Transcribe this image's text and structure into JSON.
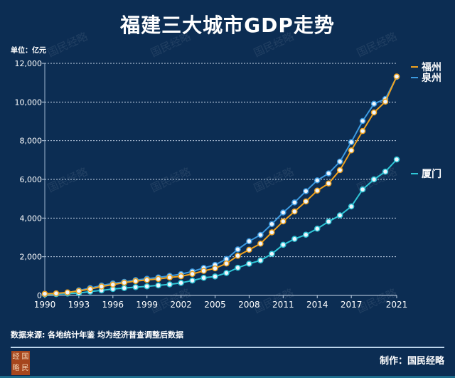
{
  "title": "福建三大城市GDP走势",
  "unit_label": "单位：亿元",
  "source": "数据来源: 各地统计年鉴  均为经济普查调整后数据",
  "credit": "制作：国民经略",
  "logo_text": [
    "经",
    "国",
    "略",
    "民"
  ],
  "watermark": "国民经略",
  "chart_data": {
    "type": "line",
    "title": "福建三大城市GDP走势",
    "ylabel": "单位：亿元",
    "ylim": [
      0,
      12000
    ],
    "yticks": [
      0,
      2000,
      4000,
      6000,
      8000,
      10000,
      12000
    ],
    "ytick_labels": [
      "0",
      "2,000",
      "4,000",
      "6,000",
      "8,000",
      "10,000",
      "12,000"
    ],
    "xtick_labels": [
      "1990",
      "1993",
      "1996",
      "1999",
      "2002",
      "2005",
      "2008",
      "2011",
      "2014",
      "2017",
      "2021"
    ],
    "grid": "horizontal dotted",
    "legend": "right",
    "x": [
      1990,
      1991,
      1992,
      1993,
      1994,
      1995,
      1996,
      1997,
      1998,
      1999,
      2000,
      2001,
      2002,
      2003,
      2004,
      2005,
      2006,
      2007,
      2008,
      2009,
      2010,
      2011,
      2012,
      2013,
      2014,
      2015,
      2016,
      2017,
      2018,
      2019,
      2020,
      2021
    ],
    "series": [
      {
        "name": "福州",
        "color": "#f0a21e",
        "values": [
          85,
          105,
          155,
          230,
          330,
          460,
          560,
          660,
          740,
          800,
          850,
          930,
          990,
          1110,
          1270,
          1400,
          1650,
          2050,
          2360,
          2680,
          3260,
          3830,
          4340,
          4860,
          5420,
          5790,
          6480,
          7500,
          8500,
          9460,
          10020,
          11320
        ]
      },
      {
        "name": "泉州",
        "color": "#3c9ae0",
        "values": [
          80,
          100,
          140,
          260,
          380,
          510,
          620,
          700,
          790,
          860,
          930,
          1010,
          1100,
          1240,
          1420,
          1580,
          1880,
          2380,
          2800,
          3130,
          3690,
          4290,
          4810,
          5390,
          5950,
          6310,
          6920,
          7930,
          9020,
          9910,
          10160,
          11300
        ]
      },
      {
        "name": "厦门",
        "color": "#2fc6d6",
        "values": [
          55,
          70,
          95,
          120,
          200,
          260,
          330,
          380,
          430,
          470,
          520,
          570,
          650,
          770,
          910,
          980,
          1160,
          1430,
          1640,
          1810,
          2150,
          2620,
          2920,
          3140,
          3450,
          3820,
          4140,
          4600,
          5480,
          6000,
          6400,
          7030
        ]
      }
    ]
  }
}
